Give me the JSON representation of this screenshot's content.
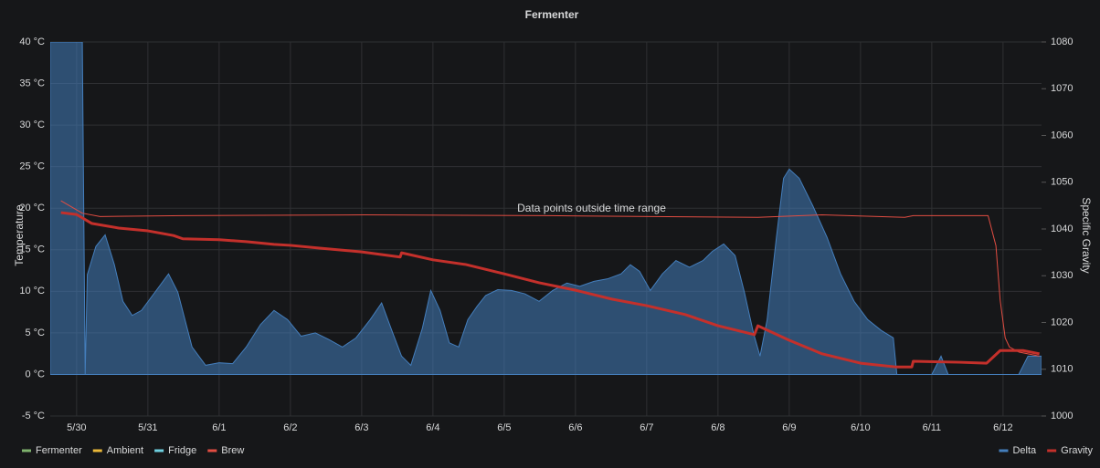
{
  "chart_data": {
    "type": "line",
    "title": "Fermenter",
    "annotation": "Data points outside time range",
    "ylabel": "Temperature",
    "y2label": "Specific Gravity",
    "xlim": [
      -0.37,
      13.54
    ],
    "xticks": [
      {
        "value": 0,
        "label": "5/30"
      },
      {
        "value": 1,
        "label": "5/31"
      },
      {
        "value": 2,
        "label": "6/1"
      },
      {
        "value": 3,
        "label": "6/2"
      },
      {
        "value": 4,
        "label": "6/3"
      },
      {
        "value": 5,
        "label": "6/4"
      },
      {
        "value": 6,
        "label": "6/5"
      },
      {
        "value": 7,
        "label": "6/6"
      },
      {
        "value": 8,
        "label": "6/7"
      },
      {
        "value": 9,
        "label": "6/8"
      },
      {
        "value": 10,
        "label": "6/9"
      },
      {
        "value": 11,
        "label": "6/10"
      },
      {
        "value": 12,
        "label": "6/11"
      },
      {
        "value": 13,
        "label": "6/12"
      }
    ],
    "ylim": [
      -5,
      40
    ],
    "yticks": [
      {
        "value": -5,
        "label": "-5 °C"
      },
      {
        "value": 0,
        "label": "0 °C"
      },
      {
        "value": 5,
        "label": "5 °C"
      },
      {
        "value": 10,
        "label": "10 °C"
      },
      {
        "value": 15,
        "label": "15 °C"
      },
      {
        "value": 20,
        "label": "20 °C"
      },
      {
        "value": 25,
        "label": "25 °C"
      },
      {
        "value": 30,
        "label": "30 °C"
      },
      {
        "value": 35,
        "label": "35 °C"
      },
      {
        "value": 40,
        "label": "40 °C"
      }
    ],
    "y2lim": [
      1000,
      1080
    ],
    "y2ticks": [
      1000,
      1010,
      1020,
      1030,
      1040,
      1050,
      1060,
      1070,
      1080
    ],
    "grid": true,
    "series": [
      {
        "name": "Fermenter",
        "color": "#7eb26d",
        "legend": "left"
      },
      {
        "name": "Ambient",
        "color": "#eab839",
        "legend": "left"
      },
      {
        "name": "Fridge",
        "color": "#6ed0e0",
        "legend": "left"
      },
      {
        "name": "Brew",
        "color": "#e24d42",
        "legend": "left",
        "width": 1,
        "x": [
          -0.22,
          0.08,
          0.33,
          1.49,
          4.05,
          6.62,
          9.56,
          10.46,
          11.62,
          11.74,
          12.79,
          12.9,
          12.96,
          13.03,
          13.09,
          13.22,
          13.51
        ],
        "values": [
          20.9,
          19.4,
          19,
          19.1,
          19.2,
          19.1,
          18.9,
          19.2,
          18.9,
          19.1,
          19.1,
          15.5,
          8.9,
          4.4,
          3.3,
          2.7,
          2.2
        ]
      },
      {
        "name": "Delta",
        "color": "#447ebc",
        "legend": "right",
        "fill": true,
        "x": [
          -0.37,
          0.08,
          0.12,
          0.15,
          0.27,
          0.4,
          0.53,
          0.65,
          0.78,
          0.91,
          1.1,
          1.29,
          1.42,
          1.62,
          1.81,
          2,
          2.19,
          2.38,
          2.58,
          2.77,
          2.96,
          3.15,
          3.35,
          3.54,
          3.73,
          3.92,
          4.12,
          4.28,
          4.44,
          4.56,
          4.69,
          4.85,
          4.97,
          5.1,
          5.23,
          5.36,
          5.49,
          5.62,
          5.74,
          5.91,
          6.1,
          6.29,
          6.49,
          6.68,
          6.88,
          7.06,
          7.26,
          7.45,
          7.64,
          7.77,
          7.9,
          8.05,
          8.22,
          8.41,
          8.6,
          8.79,
          8.92,
          9.08,
          9.24,
          9.37,
          9.5,
          9.59,
          9.69,
          9.82,
          9.92,
          10,
          10.14,
          10.33,
          10.53,
          10.72,
          10.91,
          11.1,
          11.29,
          11.46,
          11.51,
          12,
          12.13,
          12.23,
          13.22,
          13.35,
          13.54
        ],
        "values": [
          40,
          40,
          0,
          12,
          15.4,
          16.8,
          13.2,
          8.8,
          7.1,
          7.7,
          9.9,
          12.1,
          9.9,
          3.3,
          1.1,
          1.4,
          1.3,
          3.3,
          6,
          7.7,
          6.6,
          4.6,
          5,
          4.2,
          3.3,
          4.4,
          6.6,
          8.6,
          4.9,
          2.2,
          1.1,
          5.5,
          10.1,
          7.7,
          3.8,
          3.3,
          6.6,
          8.2,
          9.5,
          10.2,
          10.1,
          9.7,
          8.8,
          10.1,
          11,
          10.6,
          11.2,
          11.5,
          12.1,
          13.2,
          12.4,
          10.1,
          12.1,
          13.7,
          12.9,
          13.7,
          14.8,
          15.7,
          14.3,
          9.9,
          4.9,
          2.2,
          6.6,
          16.5,
          23.6,
          24.7,
          23.6,
          20.3,
          16.5,
          12.1,
          8.8,
          6.6,
          5.3,
          4.4,
          0,
          0,
          2.2,
          0,
          0,
          2.2,
          2.2
        ]
      },
      {
        "name": "Gravity",
        "color": "#c4302b",
        "legend": "right",
        "axis": "y2",
        "width": 3,
        "x": [
          -0.22,
          0,
          0.21,
          0.59,
          1,
          1.36,
          1.49,
          2,
          2.38,
          2.77,
          3,
          3.41,
          4,
          4.54,
          4.56,
          5,
          5.46,
          6,
          6.49,
          7,
          7.51,
          8,
          8.54,
          9,
          9.51,
          9.56,
          10,
          10.46,
          11,
          11.49,
          11.72,
          11.74,
          12.38,
          12.77,
          12.96,
          13.28,
          13.51
        ],
        "values": [
          1043.5,
          1043.1,
          1041.2,
          1040.2,
          1039.6,
          1038.6,
          1037.9,
          1037.7,
          1037.3,
          1036.7,
          1036.5,
          1035.9,
          1035.1,
          1034,
          1034.9,
          1033.4,
          1032.4,
          1030.4,
          1028.5,
          1026.9,
          1025,
          1023.6,
          1021.7,
          1019.3,
          1017.4,
          1019.3,
          1016.2,
          1013.3,
          1011.3,
          1010.5,
          1010.5,
          1011.7,
          1011.5,
          1011.3,
          1014,
          1014,
          1013.3
        ]
      }
    ]
  }
}
